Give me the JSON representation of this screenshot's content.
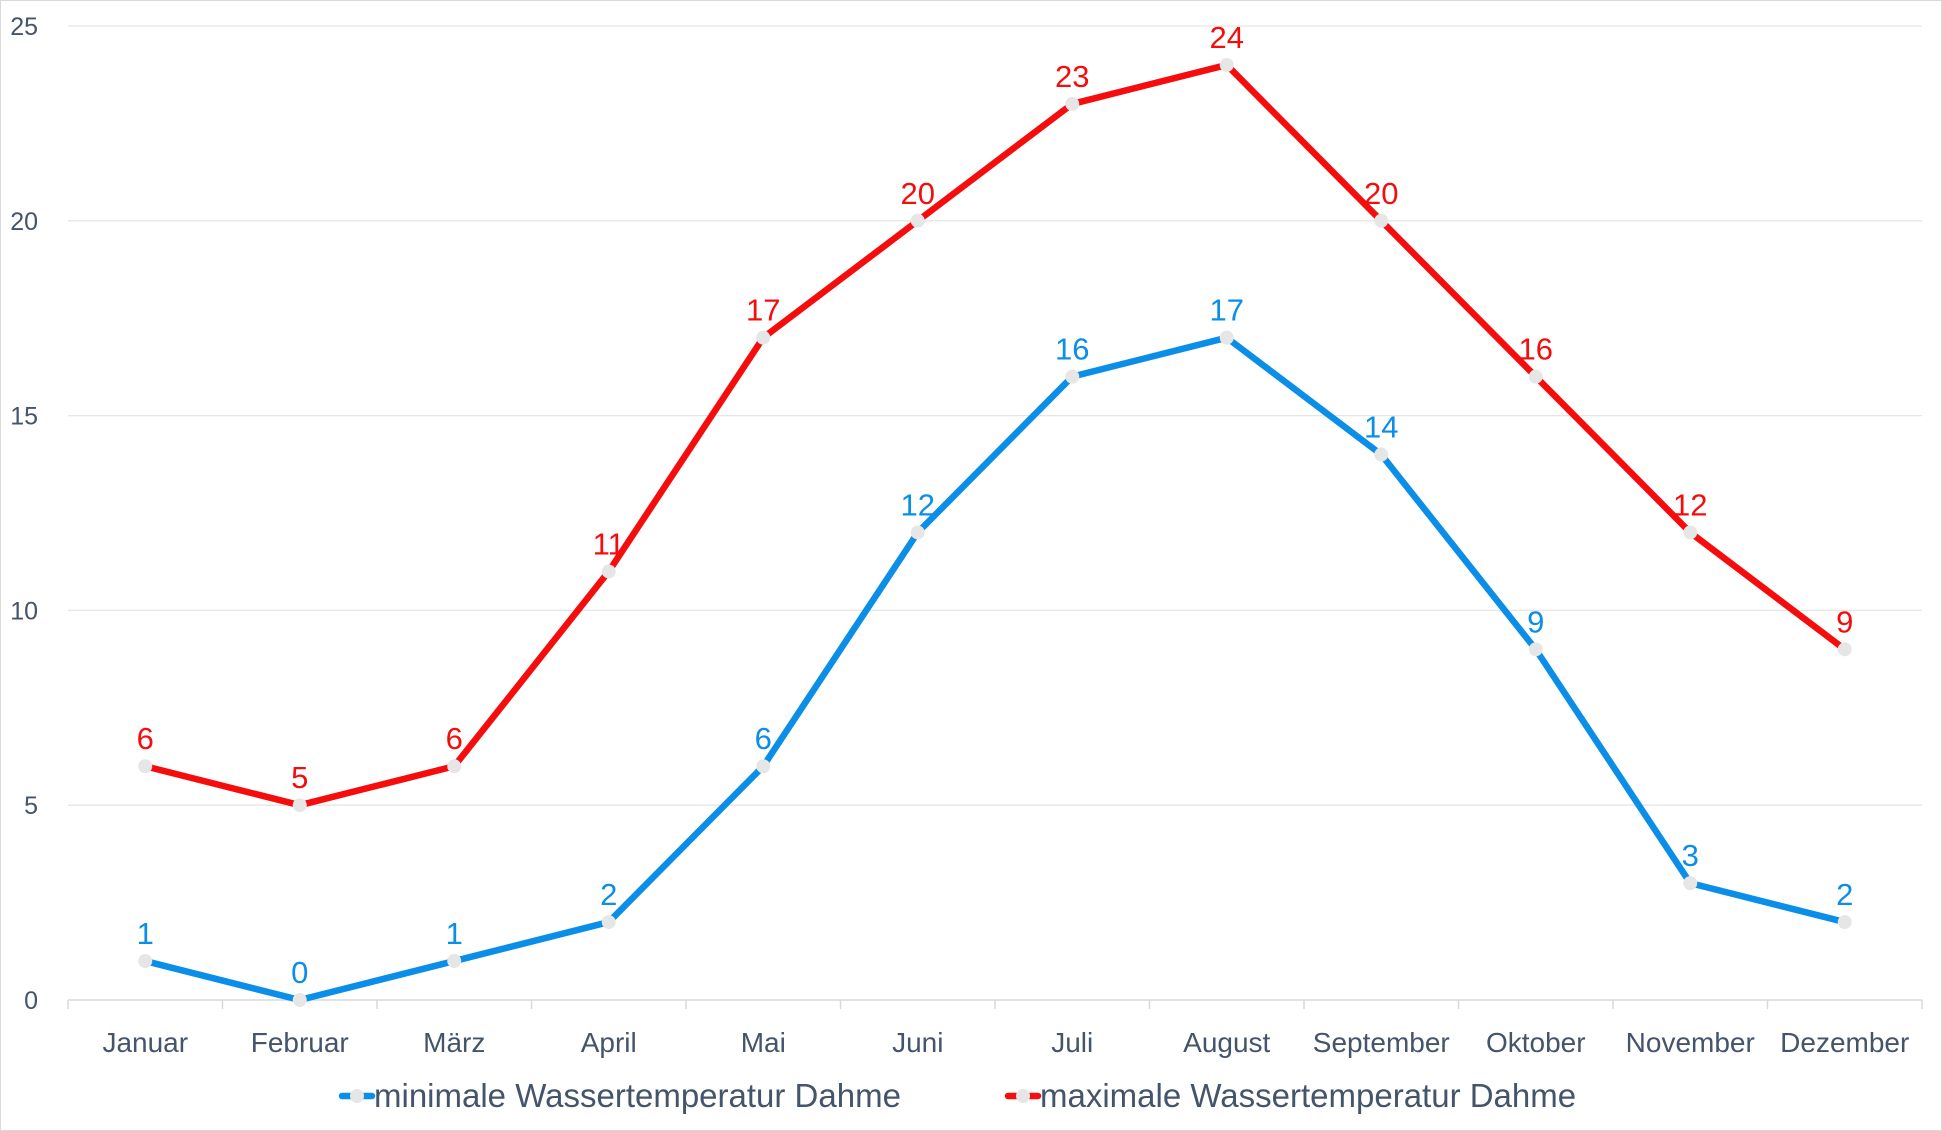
{
  "chart_data": {
    "type": "line",
    "categories": [
      "Januar",
      "Februar",
      "März",
      "April",
      "Mai",
      "Juni",
      "Juli",
      "August",
      "September",
      "Oktober",
      "November",
      "Dezember"
    ],
    "series": [
      {
        "name": "minimale Wassertemperatur Dahme",
        "color": "#0b8ee8",
        "values": [
          1,
          0,
          1,
          2,
          6,
          12,
          16,
          17,
          14,
          9,
          3,
          2
        ]
      },
      {
        "name": "maximale Wassertemperatur Dahme",
        "color": "#f50d0d",
        "values": [
          6,
          5,
          6,
          11,
          17,
          20,
          23,
          24,
          20,
          16,
          12,
          9
        ]
      }
    ],
    "yticks": [
      0,
      5,
      10,
      15,
      20,
      25
    ],
    "ylim": [
      0,
      25
    ],
    "grid": true,
    "data_labels": true,
    "legend": "bottom",
    "marker_color": "#e6e6e6",
    "title": "",
    "xlabel": "",
    "ylabel": ""
  }
}
